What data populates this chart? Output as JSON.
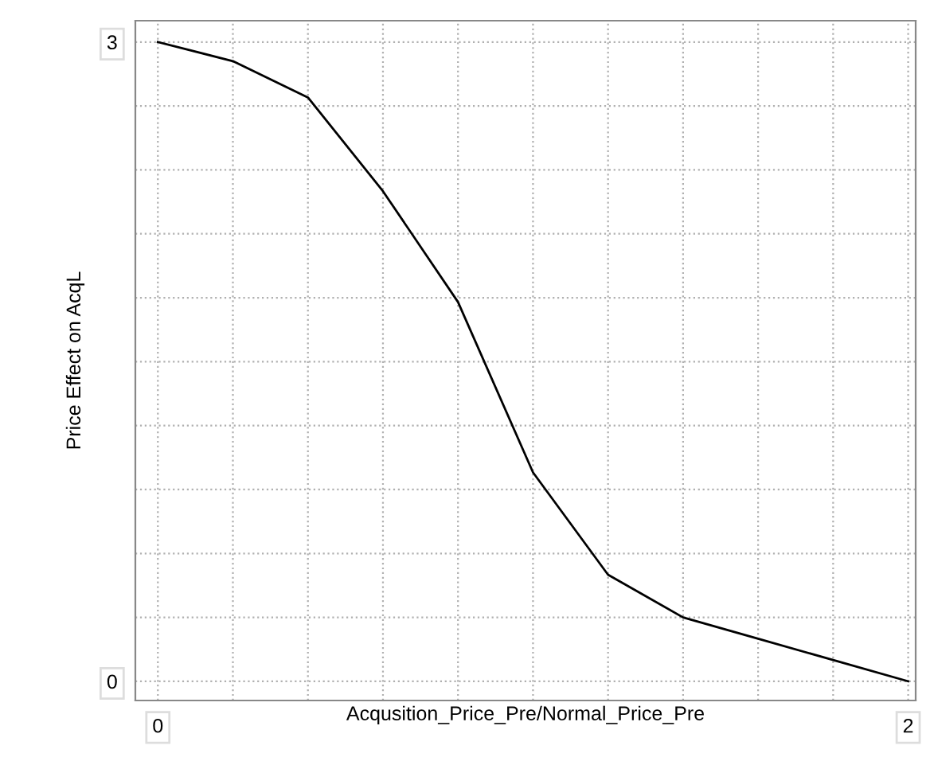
{
  "chart_data": {
    "type": "line",
    "xlabel": "Acqusition_Price_Pre/Normal_Price_Pre",
    "ylabel": "Price Effect on AcqL",
    "x": [
      0,
      0.2,
      0.4,
      0.6,
      0.8,
      1.0,
      1.2,
      1.4,
      1.6,
      1.8,
      2.0
    ],
    "series": [
      {
        "color": "#000000",
        "values": [
          3.0,
          2.91,
          2.74,
          2.3,
          1.78,
          0.98,
          0.5,
          0.3,
          0.2,
          0.1,
          0.0
        ]
      }
    ],
    "xlim": [
      -0.06,
      2.02
    ],
    "ylim": [
      -0.09,
      3.1
    ],
    "xticks": [
      0,
      {
        "value": 0.2,
        "label": null
      },
      {
        "value": 0.4,
        "label": null
      },
      {
        "value": 0.6,
        "label": null
      },
      {
        "value": 0.8,
        "label": null
      },
      {
        "value": 1.0,
        "label": null
      },
      {
        "value": 1.2,
        "label": null
      },
      {
        "value": 1.4,
        "label": null
      },
      {
        "value": 1.6,
        "label": null
      },
      {
        "value": 1.8,
        "label": null
      },
      2
    ],
    "yticks": [
      0,
      {
        "value": 0.3,
        "label": null
      },
      {
        "value": 0.6,
        "label": null
      },
      {
        "value": 0.9,
        "label": null
      },
      {
        "value": 1.2,
        "label": null
      },
      {
        "value": 1.5,
        "label": null
      },
      {
        "value": 1.8,
        "label": null
      },
      {
        "value": 2.1,
        "label": null
      },
      {
        "value": 2.4,
        "label": null
      },
      {
        "value": 2.7,
        "label": null
      },
      3
    ],
    "grid": true,
    "line_style": "solid",
    "marker": "none"
  }
}
